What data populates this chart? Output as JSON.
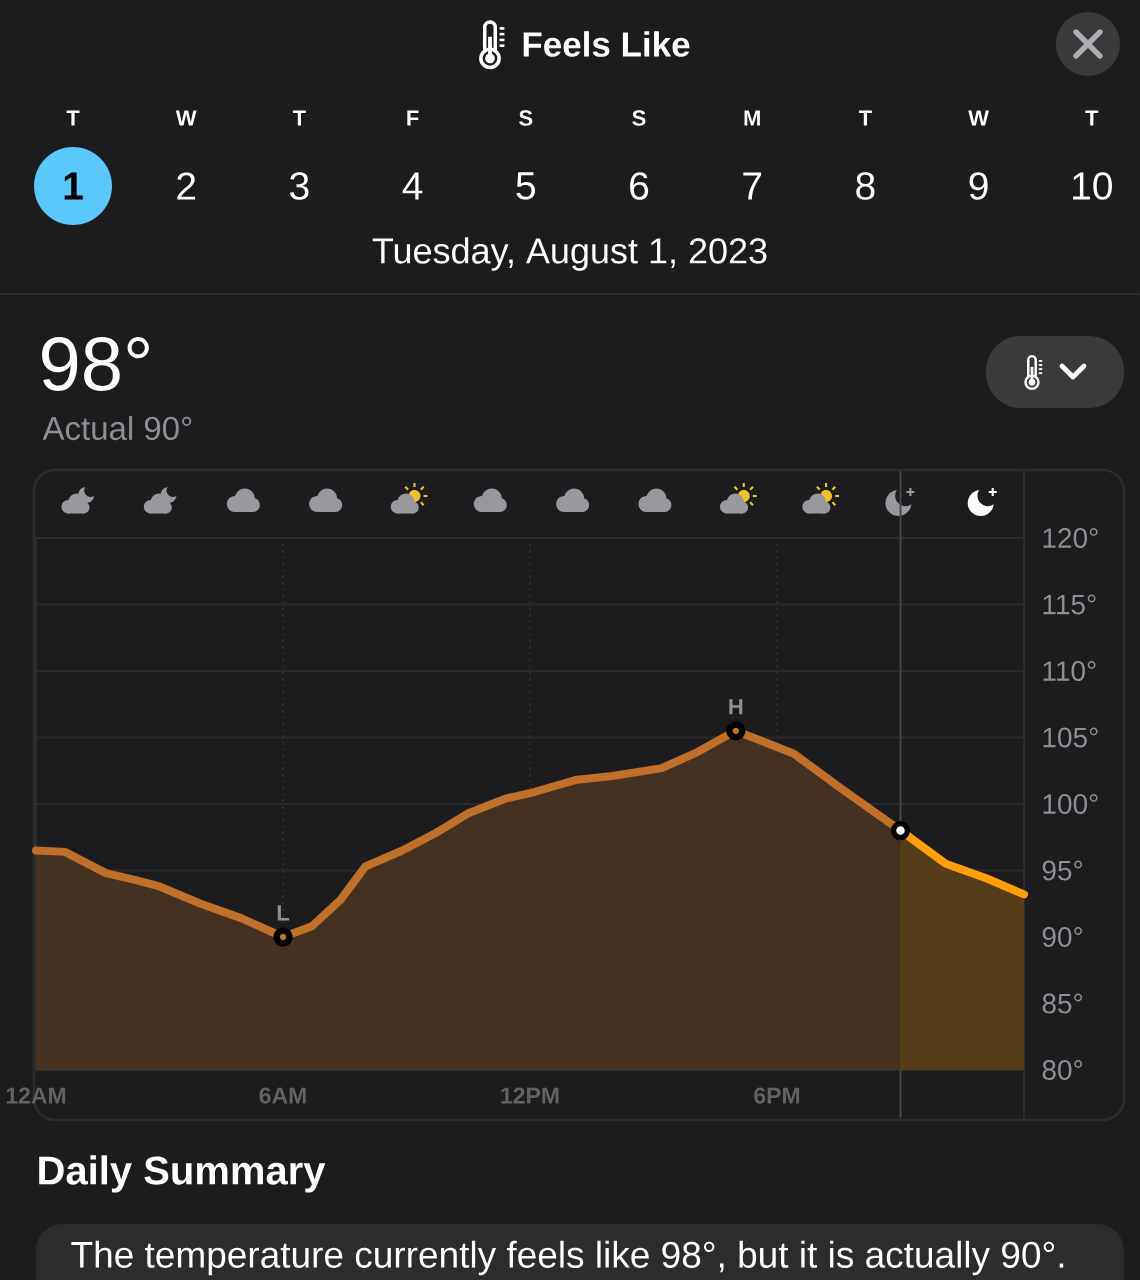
{
  "chart_data": {
    "type": "area",
    "title": "Feels Like",
    "subtitle": "Tuesday, August 1, 2023",
    "series": [
      {
        "color": "#c0702a",
        "x": [
          "2023-08-01T00:00",
          "2023-08-01T00:42",
          "2023-08-01T01:42",
          "2023-08-01T02:24",
          "2023-08-01T03:00",
          "2023-08-01T04:00",
          "2023-08-01T05:00",
          "2023-08-01T06:00",
          "2023-08-01T06:42",
          "2023-08-01T07:24",
          "2023-08-01T08:00",
          "2023-08-01T08:54",
          "2023-08-01T09:42",
          "2023-08-01T10:30",
          "2023-08-01T11:24",
          "2023-08-01T12:06",
          "2023-08-01T13:06",
          "2023-08-01T14:00",
          "2023-08-01T15:12",
          "2023-08-01T16:00",
          "2023-08-01T17:00",
          "2023-08-01T18:24",
          "2023-08-01T19:30",
          "2023-08-01T21:00"
        ],
        "values": [
          96.5,
          96.4,
          94.8,
          94.3,
          93.8,
          92.5,
          91.4,
          90,
          90.8,
          92.8,
          95.3,
          96.5,
          97.8,
          99.3,
          100.4,
          100.9,
          101.8,
          102.1,
          102.7,
          103.8,
          105.5,
          103.8,
          101.3,
          98
        ]
      },
      {
        "color": "#ff9f0a",
        "x": [
          "2023-08-01T21:00",
          "2023-08-01T22:06",
          "2023-08-01T23:06",
          "2023-08-02T00:00"
        ],
        "values": [
          98,
          95.5,
          94.4,
          93.2
        ]
      },
      {
        "type": "scatter",
        "color": "#ffffff",
        "marker": "circle",
        "x": [
          "2023-08-01T21:00"
        ],
        "values": [
          98
        ]
      }
    ],
    "xlim": [
      "2023-08-01T00:00",
      "2023-08-02T00:00"
    ],
    "xticks": [
      {
        "value": "2023-08-01T00:00",
        "label": "12AM"
      },
      {
        "value": "2023-08-01T06:00",
        "label": "6AM"
      },
      {
        "value": "2023-08-01T12:00",
        "label": "12PM"
      },
      {
        "value": "2023-08-01T18:00",
        "label": "6PM"
      }
    ],
    "ylim": [
      80,
      120
    ],
    "yticks": [
      {
        "value": 80,
        "label": "80°"
      },
      {
        "value": 85,
        "label": "85°"
      },
      {
        "value": 90,
        "label": "90°"
      },
      {
        "value": 95,
        "label": "95°"
      },
      {
        "value": 100,
        "label": "100°"
      },
      {
        "value": 105,
        "label": "105°"
      },
      {
        "value": 110,
        "label": "110°"
      },
      {
        "value": 115,
        "label": "115°"
      },
      {
        "value": 120,
        "label": "120°"
      }
    ],
    "grid": true,
    "marker": "none",
    "line_style": "solid",
    "ref_lines": [
      {
        "axis": "x",
        "value": "2023-08-01T21:00",
        "color": "#48484a"
      }
    ],
    "annotations": [
      "T",
      "W",
      "T",
      "F",
      "S",
      "S",
      "M",
      "T",
      "W",
      "T",
      "1",
      "2",
      "3",
      "4",
      "5",
      "6",
      "7",
      "8",
      "9",
      "10",
      "98°",
      "Actual 90°",
      {
        "text": "L",
        "x": "2023-08-01T06:00",
        "y": 90
      },
      {
        "text": "H",
        "x": "2023-08-01T17:00",
        "y": 105.5
      },
      "Daily Summary",
      "The temperature currently feels like 98°, but it is actually 90°."
    ]
  }
}
